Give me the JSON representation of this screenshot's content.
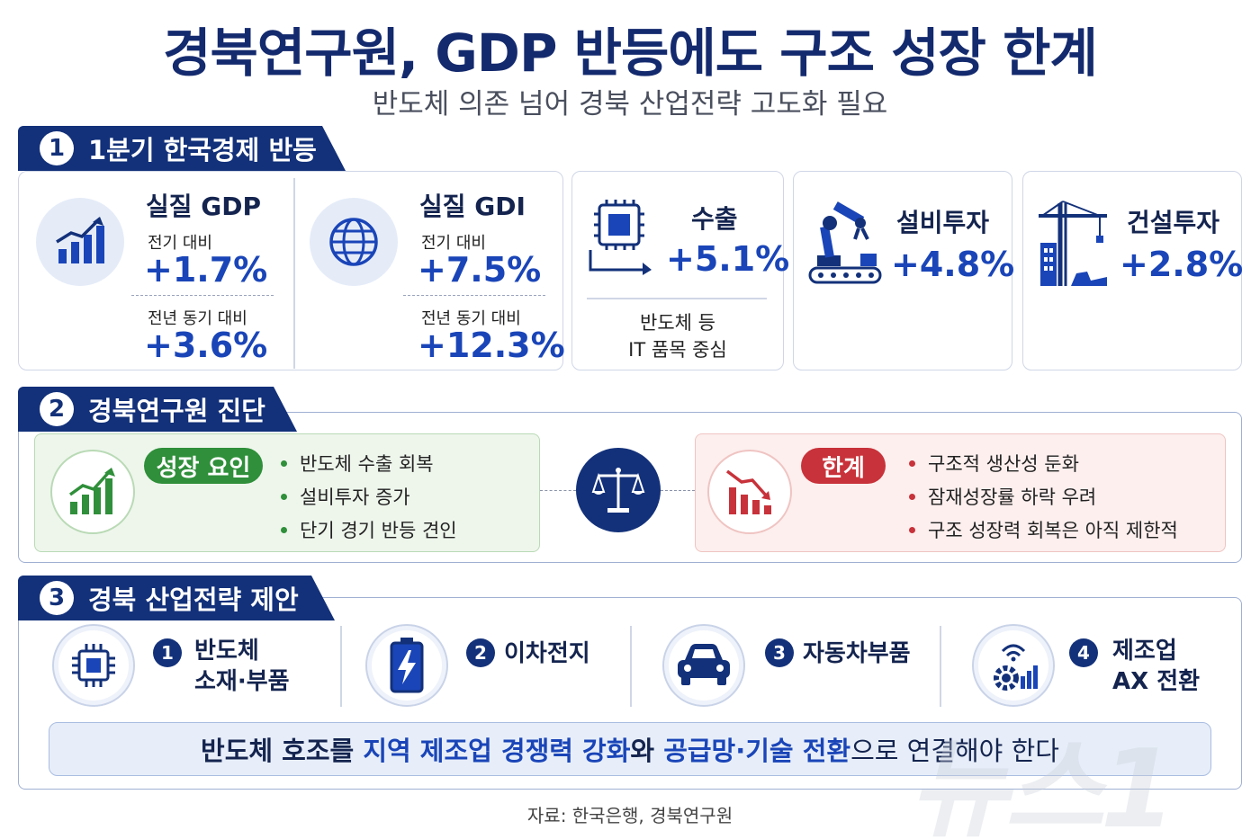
{
  "header": {
    "title": "경북연구원, GDP 반등에도 구조 성장 한계",
    "subtitle": "반도체 의존 넘어 경북 산업전략 고도화 필요"
  },
  "section1": {
    "num": "1",
    "title": "1분기 한국경제 반등",
    "gdp": {
      "title": "실질 GDP",
      "qoq_label": "전기 대비",
      "qoq_value": "+1.7%",
      "yoy_label": "전년 동기 대비",
      "yoy_value": "+3.6%",
      "icon": "growth-chart-icon"
    },
    "gdi": {
      "title": "실질 GDI",
      "qoq_label": "전기 대비",
      "qoq_value": "+7.5%",
      "yoy_label": "전년 동기 대비",
      "yoy_value": "+12.3%",
      "icon": "globe-icon"
    },
    "export": {
      "label": "수출",
      "value": "+5.1%",
      "note_line1": "반도체 등",
      "note_line2": "IT 품목 중심",
      "icon": "chip-icon"
    },
    "equipment": {
      "label": "설비투자",
      "value": "+4.8%",
      "icon": "robot-arm-icon"
    },
    "construction": {
      "label": "건설투자",
      "value": "+2.8%",
      "icon": "crane-icon"
    }
  },
  "section2": {
    "num": "2",
    "title": "경북연구원 진단",
    "growth": {
      "pill": "성장 요인",
      "items": [
        "반도체 수출 회복",
        "설비투자 증가",
        "단기 경기 반등 견인"
      ]
    },
    "limit": {
      "pill": "한계",
      "items": [
        "구조적 생산성 둔화",
        "잠재성장률 하락 우려",
        "구조 성장력 회복은 아직 제한적"
      ]
    }
  },
  "section3": {
    "num": "3",
    "title": "경북 산업전략 제안",
    "items": [
      {
        "num": "1",
        "line1": "반도체",
        "line2": "소재·부품"
      },
      {
        "num": "2",
        "line1": "이차전지",
        "line2": ""
      },
      {
        "num": "3",
        "line1": "자동차부품",
        "line2": ""
      },
      {
        "num": "4",
        "line1": "제조업",
        "line2": "AX 전환"
      }
    ],
    "conclusion": {
      "p1": "반도체 호조를 ",
      "p2": "지역 제조업 경쟁력 강화",
      "p3": "와 ",
      "p4": "공급망·기술 전환",
      "p5": "으로 연결해야 한다"
    }
  },
  "footer": {
    "source": "자료: 한국은행, 경북연구원",
    "watermark": "뉴스1"
  },
  "colors": {
    "navy": "#13317a",
    "blue": "#1a45b8",
    "green": "#2f8f3a",
    "red": "#c8323a"
  }
}
